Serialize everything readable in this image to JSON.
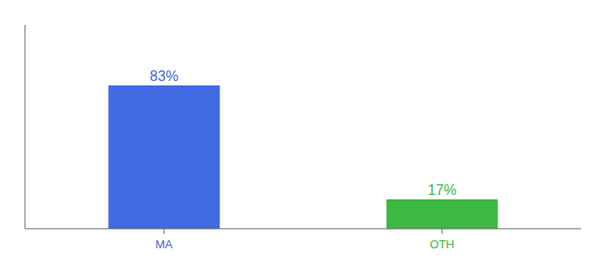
{
  "chart_data": {
    "type": "bar",
    "categories": [
      "MA",
      "OTH"
    ],
    "values": [
      83,
      17
    ],
    "value_labels": [
      "83%",
      "17%"
    ],
    "colors": [
      "#4169e1",
      "#3cb843"
    ],
    "ylim": [
      0,
      118
    ],
    "tick_labels": "x",
    "data_labels": true,
    "grid": false
  }
}
